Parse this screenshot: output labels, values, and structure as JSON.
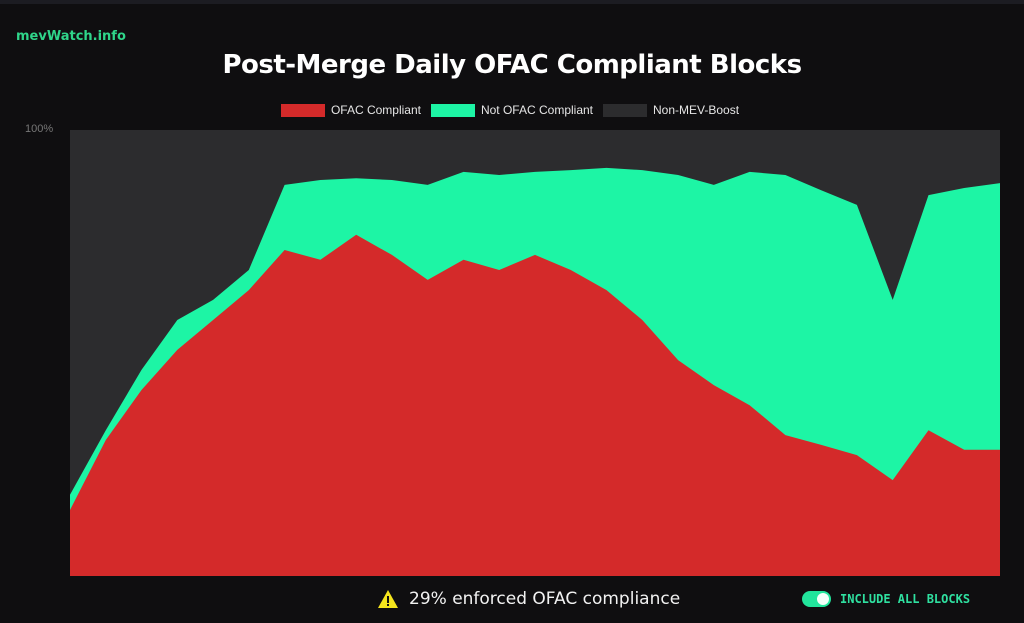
{
  "brand": "mevWatch.info",
  "chart_data": {
    "type": "area",
    "stacked": true,
    "title": "Post-Merge Daily OFAC Compliant Blocks",
    "ylim": [
      0,
      100
    ],
    "yticks": [
      "100%"
    ],
    "legend_placement": "top",
    "grid": false,
    "series": [
      {
        "name": "OFAC Compliant",
        "color": "#d42a2a",
        "values": [
          14.8,
          30.5,
          41.7,
          50.7,
          57.4,
          64.1,
          73.1,
          70.9,
          76.5,
          72.0,
          66.4,
          70.9,
          68.6,
          72.0,
          68.6,
          64.1,
          57.4,
          48.4,
          42.8,
          38.3,
          31.6,
          29.4,
          27.1,
          21.5,
          32.7,
          28.3,
          28.3
        ]
      },
      {
        "name": "Not OFAC Compliant",
        "color": "#1df5a5",
        "values": [
          3.4,
          2.2,
          4.5,
          6.7,
          4.5,
          4.5,
          14.6,
          17.9,
          12.7,
          16.8,
          21.3,
          19.7,
          21.3,
          18.6,
          22.4,
          27.4,
          33.6,
          41.5,
          44.9,
          52.3,
          58.3,
          57.1,
          56.1,
          40.4,
          52.7,
          58.7,
          59.8
        ]
      },
      {
        "name": "Non-MEV-Boost",
        "color": "#2c2c2e"
      }
    ]
  },
  "footer": {
    "warning_icon": "warning-triangle",
    "message": "29% enforced OFAC compliance",
    "toggle_label": "INCLUDE ALL BLOCKS",
    "toggle_on": true
  }
}
